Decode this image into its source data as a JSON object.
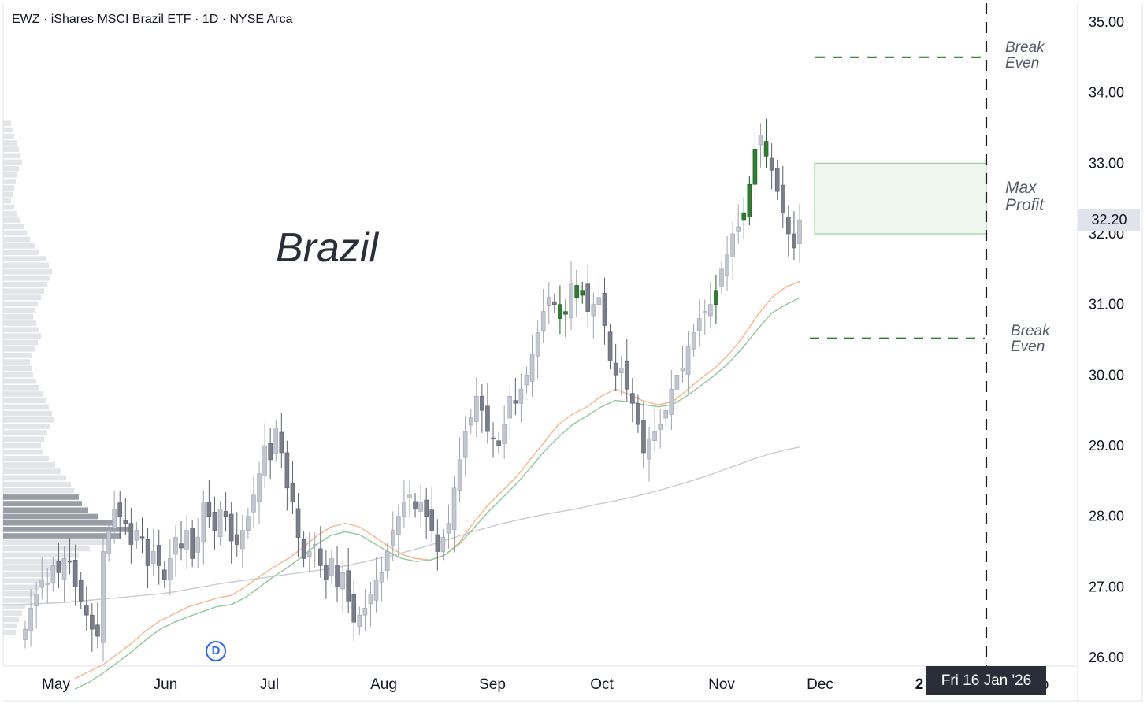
{
  "header": {
    "title": "EWZ · iShares MSCI Brazil ETF · 1D · NYSE Arca"
  },
  "watermark": "Brazil",
  "annotations": {
    "break_even_upper": [
      "Break",
      "Even"
    ],
    "max_profit": [
      "Max",
      "Profit"
    ],
    "break_even_lower": [
      "Break",
      "Even"
    ]
  },
  "crosshair_date": "Fri 16 Jan '26",
  "last_price_label": "32.20",
  "dividend_marker": "D",
  "colors": {
    "up_candle": "#2e7d32",
    "candle_light": "#c2c6d0",
    "candle_dark": "#7a7e8a",
    "ema_orange": "#f5b58a",
    "ema_green": "#8fc79a",
    "sma_gray": "#c9cbd2",
    "strategy_green": "#2e7d32",
    "profit_fill": "#eef6ee"
  },
  "chart_data": {
    "type": "candlestick",
    "title": "EWZ · iShares MSCI Brazil ETF · 1D · NYSE Arca",
    "ylim": [
      25.9,
      35.3
    ],
    "yticks": [
      "35.00",
      "34.00",
      "33.00",
      "32.00",
      "31.00",
      "30.00",
      "29.00",
      "28.00",
      "27.00",
      "26.00"
    ],
    "xticks": [
      "May",
      "Jun",
      "Jul",
      "Aug",
      "Sep",
      "Oct",
      "Nov",
      "Dec",
      "2",
      "b"
    ],
    "grid": false,
    "last_price": 32.2,
    "strategy": {
      "break_even_upper": 34.5,
      "break_even_lower": 30.52,
      "max_profit_range": [
        32.0,
        33.0
      ]
    },
    "closes": [
      26.4,
      26.7,
      26.9,
      27.1,
      27.05,
      27.3,
      27.2,
      27.4,
      27.35,
      27.0,
      26.8,
      26.6,
      26.4,
      26.3,
      27.5,
      27.8,
      28.1,
      28.0,
      27.9,
      27.6,
      27.8,
      27.7,
      27.3,
      27.5,
      27.3,
      27.1,
      27.4,
      27.7,
      27.55,
      27.8,
      27.4,
      27.7,
      28.2,
      28.0,
      27.8,
      28.1,
      28.0,
      27.65,
      27.6,
      27.8,
      28.0,
      28.3,
      28.6,
      29.0,
      28.8,
      29.25,
      28.9,
      28.4,
      28.2,
      27.7,
      27.4,
      27.5,
      27.6,
      27.3,
      27.1,
      27.4,
      27.0,
      27.2,
      26.8,
      26.5,
      26.6,
      26.7,
      26.9,
      27.1,
      27.2,
      27.5,
      27.8,
      28.0,
      28.2,
      28.3,
      28.1,
      28.2,
      28.0,
      27.8,
      27.5,
      27.7,
      27.9,
      28.4,
      28.8,
      29.2,
      29.4,
      29.7,
      29.5,
      29.2,
      29.1,
      29.0,
      29.3,
      29.7,
      29.6,
      29.8,
      30.0,
      30.3,
      30.6,
      30.9,
      31.1,
      31.0,
      30.8,
      30.9,
      31.3,
      31.1,
      31.2,
      30.9,
      31.0,
      31.1,
      30.7,
      30.2,
      30.0,
      30.1,
      29.8,
      29.6,
      29.3,
      28.9,
      29.1,
      29.2,
      29.3,
      29.5,
      29.8,
      30.0,
      30.1,
      30.4,
      30.6,
      30.8,
      30.9,
      31.0,
      31.2,
      31.5,
      31.7,
      32.0,
      32.1,
      32.3,
      32.7,
      33.2,
      33.4,
      33.1,
      32.9,
      32.6,
      32.3,
      32.0,
      31.8,
      32.2
    ],
    "series": [
      {
        "name": "",
        "kind": "ema_short",
        "values": [
          25.7,
          25.8,
          25.9,
          26.05,
          26.2,
          26.38,
          26.52,
          26.62,
          26.72,
          26.78,
          26.84,
          26.88,
          27.0,
          27.15,
          27.28,
          27.4,
          27.55,
          27.72,
          27.85,
          27.9,
          27.85,
          27.72,
          27.58,
          27.46,
          27.4,
          27.38,
          27.45,
          27.62,
          27.9,
          28.15,
          28.35,
          28.55,
          28.8,
          29.05,
          29.3,
          29.45,
          29.55,
          29.7,
          29.8,
          29.72,
          29.63,
          29.58,
          29.62,
          29.78,
          29.95,
          30.1,
          30.3,
          30.55,
          30.85,
          31.1,
          31.25,
          31.33
        ]
      },
      {
        "name": "",
        "kind": "ema_long",
        "values": [
          25.55,
          25.65,
          25.78,
          25.93,
          26.08,
          26.25,
          26.4,
          26.5,
          26.58,
          26.65,
          26.72,
          26.75,
          26.85,
          27.0,
          27.15,
          27.28,
          27.43,
          27.6,
          27.73,
          27.78,
          27.74,
          27.62,
          27.5,
          27.4,
          27.36,
          27.38,
          27.45,
          27.6,
          27.82,
          28.05,
          28.25,
          28.45,
          28.68,
          28.92,
          29.12,
          29.3,
          29.42,
          29.55,
          29.64,
          29.62,
          29.58,
          29.55,
          29.58,
          29.7,
          29.85,
          30.0,
          30.18,
          30.4,
          30.65,
          30.88,
          31.0,
          31.1
        ]
      },
      {
        "name": "",
        "kind": "sma",
        "values": [
          26.75,
          26.75,
          26.76,
          26.77,
          26.78,
          26.8,
          26.82,
          26.84,
          26.86,
          26.88,
          26.9,
          26.93,
          26.97,
          27.01,
          27.05,
          27.08,
          27.11,
          27.14,
          27.17,
          27.2,
          27.23,
          27.26,
          27.3,
          27.35,
          27.4,
          27.45,
          27.51,
          27.57,
          27.64,
          27.71,
          27.78,
          27.84,
          27.9,
          27.95,
          28.0,
          28.04,
          28.08,
          28.12,
          28.17,
          28.21,
          28.26,
          28.31,
          28.37,
          28.43,
          28.5,
          28.57,
          28.65,
          28.73,
          28.81,
          28.88,
          28.94,
          28.98
        ]
      }
    ]
  }
}
